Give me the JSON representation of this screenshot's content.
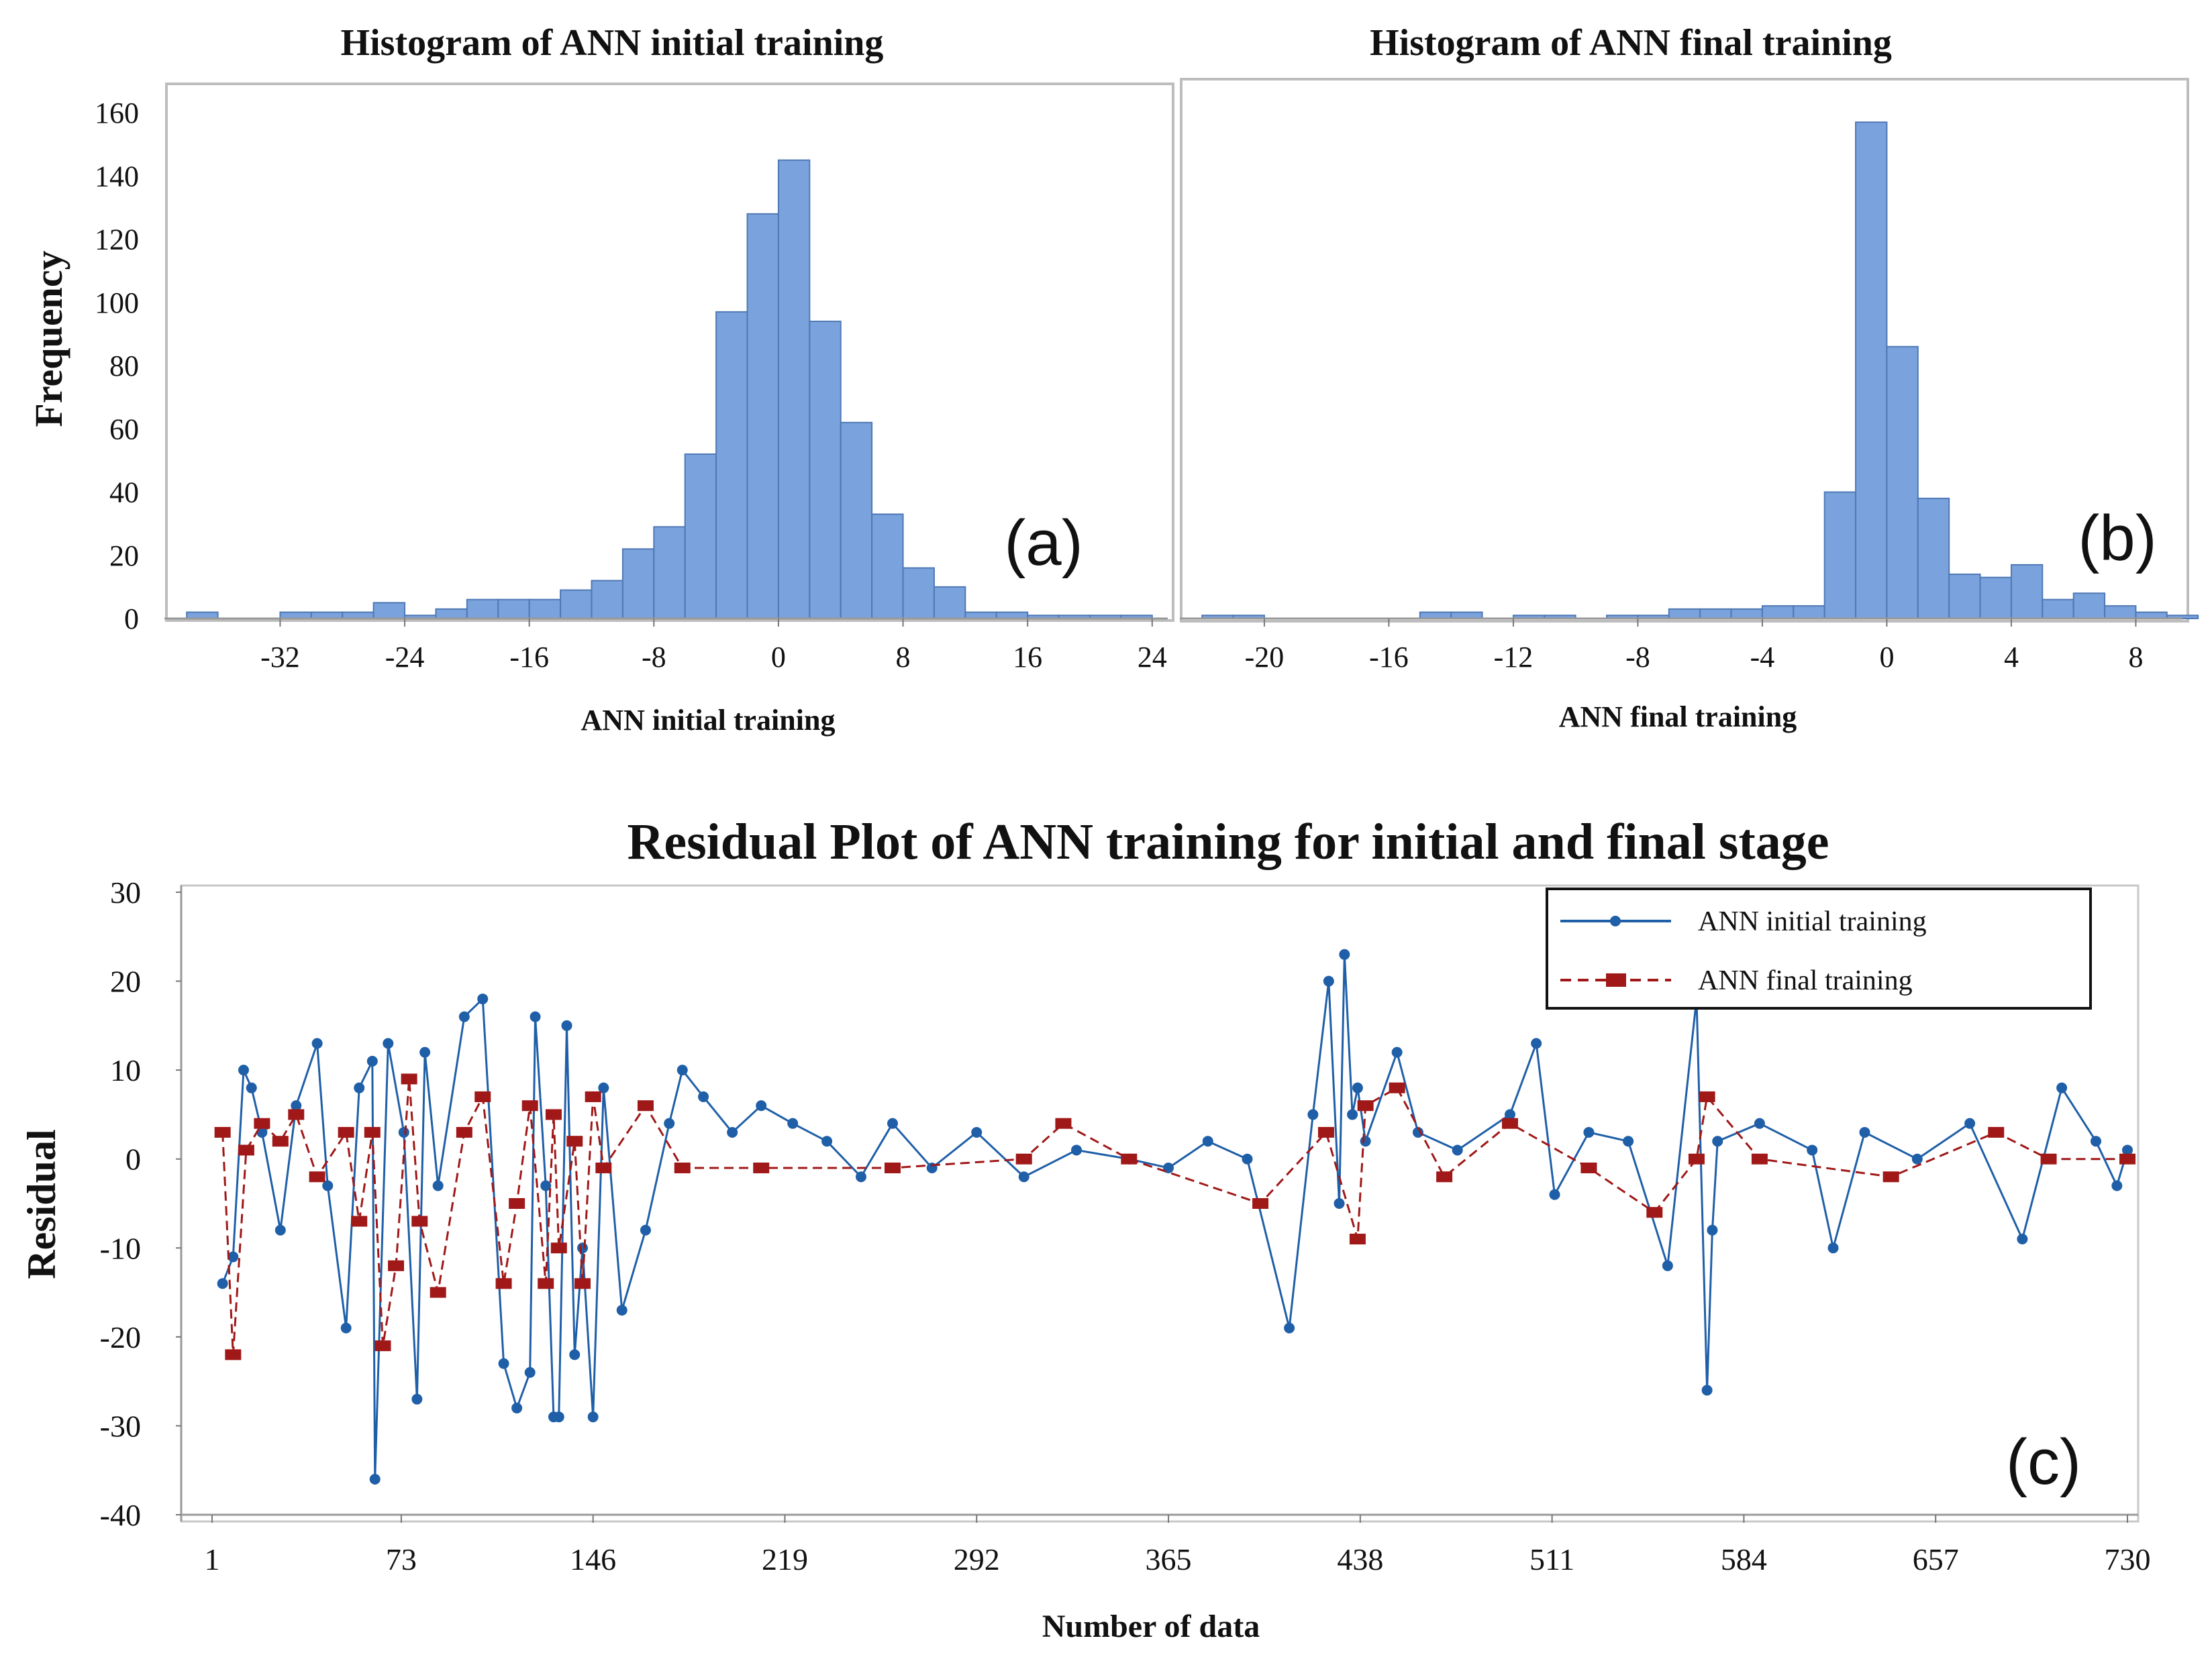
{
  "chart_data": [
    {
      "id": "a",
      "type": "bar",
      "title": "Histogram of ANN initial training",
      "xlabel": "ANN initial training",
      "ylabel": "Frequency",
      "panel_label": "(a)",
      "xlim": [
        -39,
        25
      ],
      "ylim": [
        0,
        160
      ],
      "xticks": [
        -32,
        -24,
        -16,
        -8,
        0,
        8,
        16,
        24
      ],
      "yticks": [
        0,
        20,
        40,
        60,
        80,
        100,
        120,
        140,
        160
      ],
      "bin_width": 2,
      "bins": [
        {
          "x0": -38,
          "value": 2
        },
        {
          "x0": -36,
          "value": 0
        },
        {
          "x0": -34,
          "value": 0
        },
        {
          "x0": -32,
          "value": 2
        },
        {
          "x0": -30,
          "value": 2
        },
        {
          "x0": -28,
          "value": 2
        },
        {
          "x0": -26,
          "value": 5
        },
        {
          "x0": -24,
          "value": 1
        },
        {
          "x0": -22,
          "value": 3
        },
        {
          "x0": -20,
          "value": 6
        },
        {
          "x0": -18,
          "value": 6
        },
        {
          "x0": -16,
          "value": 6
        },
        {
          "x0": -14,
          "value": 9
        },
        {
          "x0": -12,
          "value": 12
        },
        {
          "x0": -10,
          "value": 22
        },
        {
          "x0": -8,
          "value": 29
        },
        {
          "x0": -6,
          "value": 52
        },
        {
          "x0": -4,
          "value": 97
        },
        {
          "x0": -2,
          "value": 128
        },
        {
          "x0": 0,
          "value": 145
        },
        {
          "x0": 2,
          "value": 94
        },
        {
          "x0": 4,
          "value": 62
        },
        {
          "x0": 6,
          "value": 33
        },
        {
          "x0": 8,
          "value": 16
        },
        {
          "x0": 10,
          "value": 10
        },
        {
          "x0": 12,
          "value": 2
        },
        {
          "x0": 14,
          "value": 2
        },
        {
          "x0": 16,
          "value": 1
        },
        {
          "x0": 18,
          "value": 1
        },
        {
          "x0": 20,
          "value": 1
        },
        {
          "x0": 22,
          "value": 1
        }
      ]
    },
    {
      "id": "b",
      "type": "bar",
      "title": "Histogram of ANN final training",
      "xlabel": "ANN final training",
      "ylabel": "",
      "panel_label": "(b)",
      "xlim": [
        -22.5,
        9.5
      ],
      "ylim": [
        0,
        160
      ],
      "xticks": [
        -20,
        -16,
        -12,
        -8,
        -4,
        0,
        4,
        8
      ],
      "bin_width": 1,
      "bins": [
        {
          "x0": -22,
          "value": 1
        },
        {
          "x0": -21,
          "value": 1
        },
        {
          "x0": -15,
          "value": 2
        },
        {
          "x0": -14,
          "value": 2
        },
        {
          "x0": -12,
          "value": 1
        },
        {
          "x0": -11,
          "value": 1
        },
        {
          "x0": -9,
          "value": 1
        },
        {
          "x0": -8,
          "value": 1
        },
        {
          "x0": -7,
          "value": 3
        },
        {
          "x0": -6,
          "value": 3
        },
        {
          "x0": -5,
          "value": 3
        },
        {
          "x0": -4,
          "value": 4
        },
        {
          "x0": -3,
          "value": 4
        },
        {
          "x0": -2,
          "value": 40
        },
        {
          "x0": -1,
          "value": 157
        },
        {
          "x0": 0,
          "value": 86
        },
        {
          "x0": 1,
          "value": 38
        },
        {
          "x0": 2,
          "value": 14
        },
        {
          "x0": 3,
          "value": 13
        },
        {
          "x0": 4,
          "value": 17
        },
        {
          "x0": 5,
          "value": 6
        },
        {
          "x0": 6,
          "value": 8
        },
        {
          "x0": 7,
          "value": 4
        },
        {
          "x0": 8,
          "value": 2
        },
        {
          "x0": 9,
          "value": 1
        }
      ]
    },
    {
      "id": "c",
      "type": "line",
      "title": "Residual Plot of ANN training for initial and final stage",
      "xlabel": "Number of data",
      "ylabel": "Residual",
      "panel_label": "(c)",
      "xlim": [
        1,
        730
      ],
      "ylim": [
        -40,
        30
      ],
      "xticks": [
        1,
        73,
        146,
        219,
        292,
        365,
        438,
        511,
        584,
        657,
        730
      ],
      "yticks": [
        -40,
        -30,
        -20,
        -10,
        0,
        10,
        20,
        30
      ],
      "legend_position": "top-right",
      "series": [
        {
          "name": "ANN initial training",
          "color": "#1f5fa8",
          "style": "solid",
          "marker": "circle",
          "x": [
            5,
            9,
            13,
            16,
            20,
            27,
            33,
            41,
            45,
            52,
            57,
            62,
            63,
            68,
            74,
            79,
            82,
            87,
            97,
            104,
            112,
            117,
            122,
            124,
            128,
            131,
            133,
            136,
            139,
            142,
            146,
            150,
            157,
            166,
            175,
            180,
            188,
            199,
            210,
            222,
            235,
            248,
            260,
            275,
            292,
            310,
            330,
            350,
            365,
            380,
            395,
            411,
            420,
            426,
            430,
            432,
            435,
            437,
            440,
            452,
            460,
            475,
            495,
            505,
            512,
            525,
            540,
            555,
            566,
            570,
            572,
            574,
            590,
            610,
            618,
            630,
            650,
            670,
            690,
            705,
            718,
            726,
            730
          ],
          "y": [
            -14,
            -11,
            10,
            8,
            3,
            -8,
            6,
            13,
            -3,
            -19,
            8,
            11,
            -36,
            13,
            3,
            -27,
            12,
            -3,
            16,
            18,
            -23,
            -28,
            -24,
            16,
            -3,
            -29,
            -29,
            15,
            -22,
            -10,
            -29,
            8,
            -17,
            -8,
            4,
            10,
            7,
            3,
            6,
            4,
            2,
            -2,
            4,
            -1,
            3,
            -2,
            1,
            0,
            -1,
            2,
            0,
            -19,
            5,
            20,
            -5,
            23,
            5,
            8,
            2,
            12,
            3,
            1,
            5,
            13,
            -4,
            3,
            2,
            -12,
            18,
            -26,
            -8,
            2,
            4,
            1,
            -10,
            3,
            0,
            4,
            -9,
            8,
            2,
            -3,
            1
          ]
        },
        {
          "name": "ANN final training",
          "color": "#a01818",
          "style": "dashed",
          "marker": "square",
          "x": [
            5,
            9,
            14,
            20,
            27,
            33,
            41,
            52,
            57,
            62,
            66,
            71,
            76,
            80,
            87,
            97,
            104,
            112,
            117,
            122,
            128,
            131,
            133,
            139,
            142,
            146,
            150,
            166,
            180,
            210,
            260,
            310,
            325,
            350,
            400,
            425,
            437,
            440,
            452,
            470,
            495,
            525,
            550,
            566,
            570,
            590,
            640,
            680,
            700,
            730
          ],
          "y": [
            3,
            -22,
            1,
            4,
            2,
            5,
            -2,
            3,
            -7,
            3,
            -21,
            -12,
            9,
            -7,
            -15,
            3,
            7,
            -14,
            -5,
            6,
            -14,
            5,
            -10,
            2,
            -14,
            7,
            -1,
            6,
            -1,
            -1,
            -1,
            0,
            4,
            0,
            -5,
            3,
            -9,
            6,
            8,
            -2,
            4,
            -1,
            -6,
            0,
            7,
            0,
            -2,
            3,
            0,
            0
          ]
        }
      ]
    }
  ]
}
